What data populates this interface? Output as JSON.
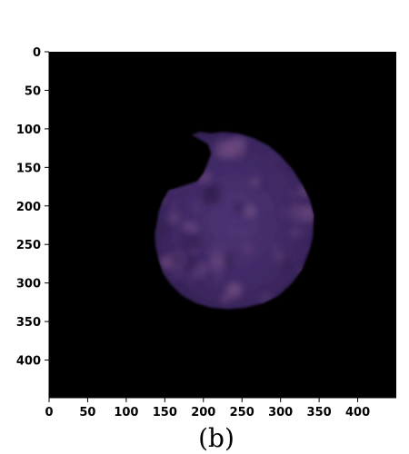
{
  "figure": {
    "caption": "(b)",
    "image": {
      "description_colors": {
        "background": "#000000",
        "cell_base": "#3a2558",
        "cell_mid": "#4a3270",
        "cell_light": "#6a4a80"
      },
      "subject_icon": "cell-icon"
    },
    "x_ticks": [
      "0",
      "50",
      "100",
      "150",
      "200",
      "250",
      "300",
      "350",
      "400"
    ],
    "y_ticks": [
      "0",
      "50",
      "100",
      "150",
      "200",
      "250",
      "300",
      "350",
      "400"
    ],
    "x_tick_values": [
      0,
      50,
      100,
      150,
      200,
      250,
      300,
      350,
      400
    ],
    "y_tick_values": [
      0,
      50,
      100,
      150,
      200,
      250,
      300,
      350,
      400
    ],
    "x_range": [
      0,
      450
    ],
    "y_range": [
      0,
      450
    ]
  }
}
